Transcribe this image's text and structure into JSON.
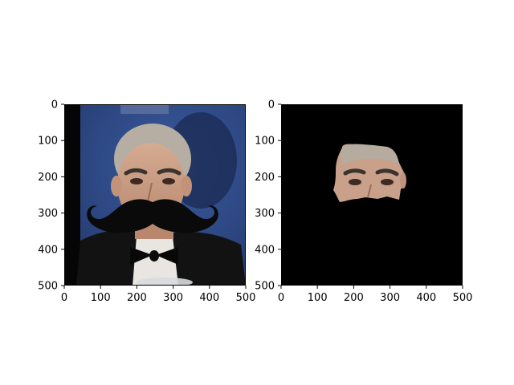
{
  "chart_data": [
    {
      "type": "image",
      "title": "",
      "content": "photo of a man in a tuxedo with a drawn-on black mustache",
      "xlim": [
        0,
        500
      ],
      "ylim": [
        500,
        0
      ],
      "xticks": [
        0,
        100,
        200,
        300,
        400,
        500
      ],
      "yticks": [
        0,
        100,
        200,
        300,
        400,
        500
      ],
      "xtick_labels": [
        "0",
        "100",
        "200",
        "300",
        "400",
        "500"
      ],
      "ytick_labels": [
        "0",
        "100",
        "200",
        "300",
        "400",
        "500"
      ]
    },
    {
      "type": "image",
      "title": "",
      "content": "segmented face region on black background",
      "xlim": [
        0,
        500
      ],
      "ylim": [
        500,
        0
      ],
      "xticks": [
        0,
        100,
        200,
        300,
        400,
        500
      ],
      "yticks": [
        0,
        100,
        200,
        300,
        400,
        500
      ],
      "xtick_labels": [
        "0",
        "100",
        "200",
        "300",
        "400",
        "500"
      ],
      "ytick_labels": [
        "0",
        "100",
        "200",
        "300",
        "400",
        "500"
      ]
    }
  ],
  "colors": {
    "background_blue": "#2e4a86",
    "mask_black": "#000000",
    "mustache": "#0b0a0a",
    "skin": "#c79d84",
    "hair": "#b9b2a7",
    "suit": "#111111",
    "axis": "#000000"
  }
}
